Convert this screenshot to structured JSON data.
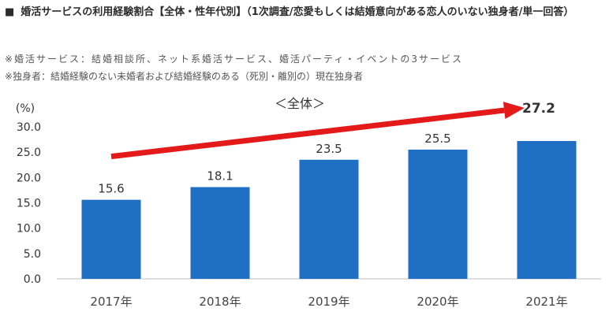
{
  "header": {
    "bullet": "■",
    "title": "婚活サービスの利用経験割合【全体・性年代別】（1次調査/恋愛もしくは結婚意向がある恋人のいない独身者/単一回答）"
  },
  "notes": [
    "※婚活サービス：結婚相談所、ネット系婚活サービス、婚活パーティ・イベントの3サービス",
    "※独身者：結婚経験のない未婚者および結婚経験のある（死別・離別の）現在独身者"
  ],
  "chart_data": {
    "type": "bar",
    "title": "＜全体＞",
    "ylabel": "(%)",
    "categories": [
      "2017年",
      "2018年",
      "2019年",
      "2020年",
      "2021年"
    ],
    "values": [
      15.6,
      18.1,
      23.5,
      25.5,
      27.2
    ],
    "value_labels": [
      "15.6",
      "18.1",
      "23.5",
      "25.5",
      "27.2"
    ],
    "ylim": [
      0,
      30
    ],
    "yticks": [
      "0.0",
      "5.0",
      "10.0",
      "15.0",
      "20.0",
      "25.0",
      "30.0"
    ],
    "grid": false,
    "legend": "none",
    "trend_arrow": true,
    "colors": {
      "bar": "#1f6fc5",
      "arrow": "#e41a1a",
      "axis": "#bfbfbf",
      "text": "#333333"
    }
  }
}
